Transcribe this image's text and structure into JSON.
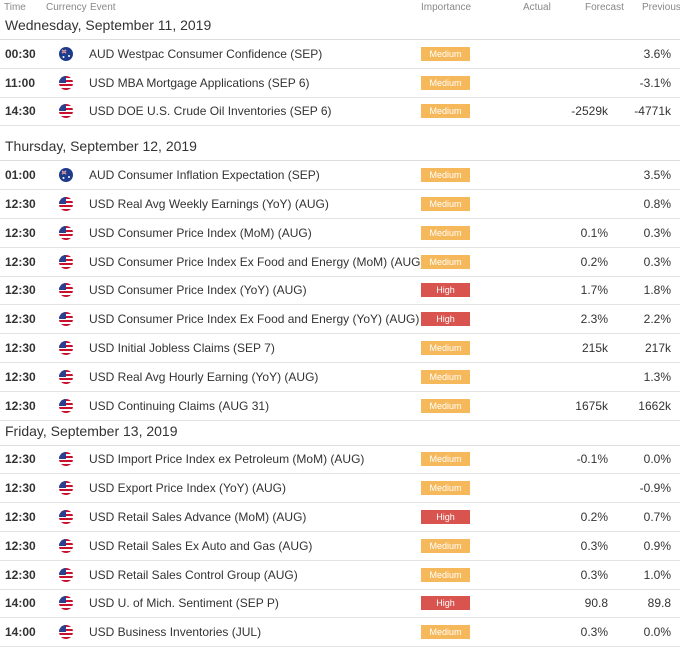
{
  "header": {
    "columns": [
      "Time",
      "Currency",
      "Event",
      "Importance",
      "Actual",
      "Forecast",
      "Previous"
    ]
  },
  "days": [
    {
      "title": "Wednesday, September 11, 2019",
      "rows": [
        {
          "time": "00:30",
          "event": "AUD Westpac Consumer Confidence (SEP)",
          "importance": "Medium",
          "previous": "3.6%"
        },
        {
          "time": "11:00",
          "event": "USD MBA Mortgage Applications (SEP 6)",
          "importance": "Medium",
          "previous": "-3.1%"
        },
        {
          "time": "14:30",
          "event": "USD DOE U.S. Crude Oil Inventories (SEP 6)",
          "importance": "Medium",
          "forecast": "-2529k",
          "previous": "-4771k"
        }
      ]
    },
    {
      "title": "Thursday, September 12, 2019",
      "rows": [
        {
          "time": "01:00",
          "event": "AUD Consumer Inflation Expectation (SEP)",
          "importance": "Medium",
          "previous": "3.5%"
        },
        {
          "time": "12:30",
          "event": "USD Real Avg Weekly Earnings (YoY) (AUG)",
          "importance": "Medium",
          "previous": "0.8%"
        },
        {
          "time": "12:30",
          "event": "USD Consumer Price Index (MoM) (AUG)",
          "importance": "Medium",
          "forecast": "0.1%",
          "previous": "0.3%"
        },
        {
          "time": "12:30",
          "event": "USD Consumer Price Index Ex Food and Energy (MoM) (AUG)",
          "importance": "Medium",
          "forecast": "0.2%",
          "previous": "0.3%"
        },
        {
          "time": "12:30",
          "event": "USD Consumer Price Index (YoY) (AUG)",
          "importance": "High",
          "forecast": "1.7%",
          "previous": "1.8%"
        },
        {
          "time": "12:30",
          "event": "USD Consumer Price Index Ex Food and Energy (YoY) (AUG)",
          "importance": "High",
          "forecast": "2.3%",
          "previous": "2.2%"
        },
        {
          "time": "12:30",
          "event": "USD Initial Jobless Claims (SEP 7)",
          "importance": "Medium",
          "forecast": "215k",
          "previous": "217k"
        },
        {
          "time": "12:30",
          "event": "USD Real Avg Hourly Earning (YoY) (AUG)",
          "importance": "Medium",
          "previous": "1.3%"
        },
        {
          "time": "12:30",
          "event": "USD Continuing Claims (AUG 31)",
          "importance": "Medium",
          "forecast": "1675k",
          "previous": "1662k"
        }
      ]
    },
    {
      "title": "Friday, September 13, 2019",
      "rows": [
        {
          "time": "12:30",
          "event": "USD Import Price Index ex Petroleum (MoM) (AUG)",
          "importance": "Medium",
          "forecast": "-0.1%",
          "previous": "0.0%"
        },
        {
          "time": "12:30",
          "event": "USD Export Price Index (YoY) (AUG)",
          "importance": "Medium",
          "previous": "-0.9%"
        },
        {
          "time": "12:30",
          "event": "USD Retail Sales Advance (MoM) (AUG)",
          "importance": "High",
          "forecast": "0.2%",
          "previous": "0.7%"
        },
        {
          "time": "12:30",
          "event": "USD Retail Sales Ex Auto and Gas (AUG)",
          "importance": "Medium",
          "forecast": "0.3%",
          "previous": "0.9%"
        },
        {
          "time": "12:30",
          "event": "USD Retail Sales Control Group (AUG)",
          "importance": "Medium",
          "forecast": "0.3%",
          "previous": "1.0%"
        },
        {
          "time": "14:00",
          "event": "USD U. of Mich. Sentiment (SEP P)",
          "importance": "High",
          "forecast": "90.8",
          "previous": "89.8"
        },
        {
          "time": "14:00",
          "event": "USD Business Inventories (JUL)",
          "importance": "Medium",
          "forecast": "0.3%",
          "previous": "0.0%"
        }
      ]
    }
  ]
}
